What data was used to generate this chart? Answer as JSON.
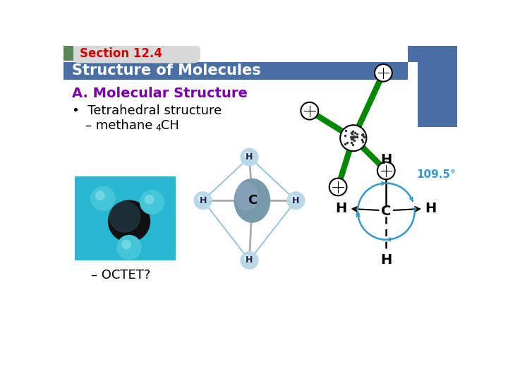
{
  "title_section": "Section 12.4",
  "title_section_color": "#cc0000",
  "header_text": "Structure of Molecules",
  "header_bg": "#4a6fa5",
  "header_text_color": "#ffffff",
  "heading_a": "A. Molecular Structure",
  "heading_a_color": "#7700aa",
  "bullet1": "Tetrahedral structure",
  "sub_bullet1": "– methane  CH",
  "sub4": "4",
  "octet": "– OCTET?",
  "bg_color": "#ffffff",
  "blue_box_color": "#4a6fa5",
  "angle_label": "109.5°",
  "angle_color": "#3399cc",
  "green_color": "#008800",
  "section_tab_bg": "#d8d8d8",
  "green_sq_color": "#558855",
  "teal_bg": "#29b6d0"
}
